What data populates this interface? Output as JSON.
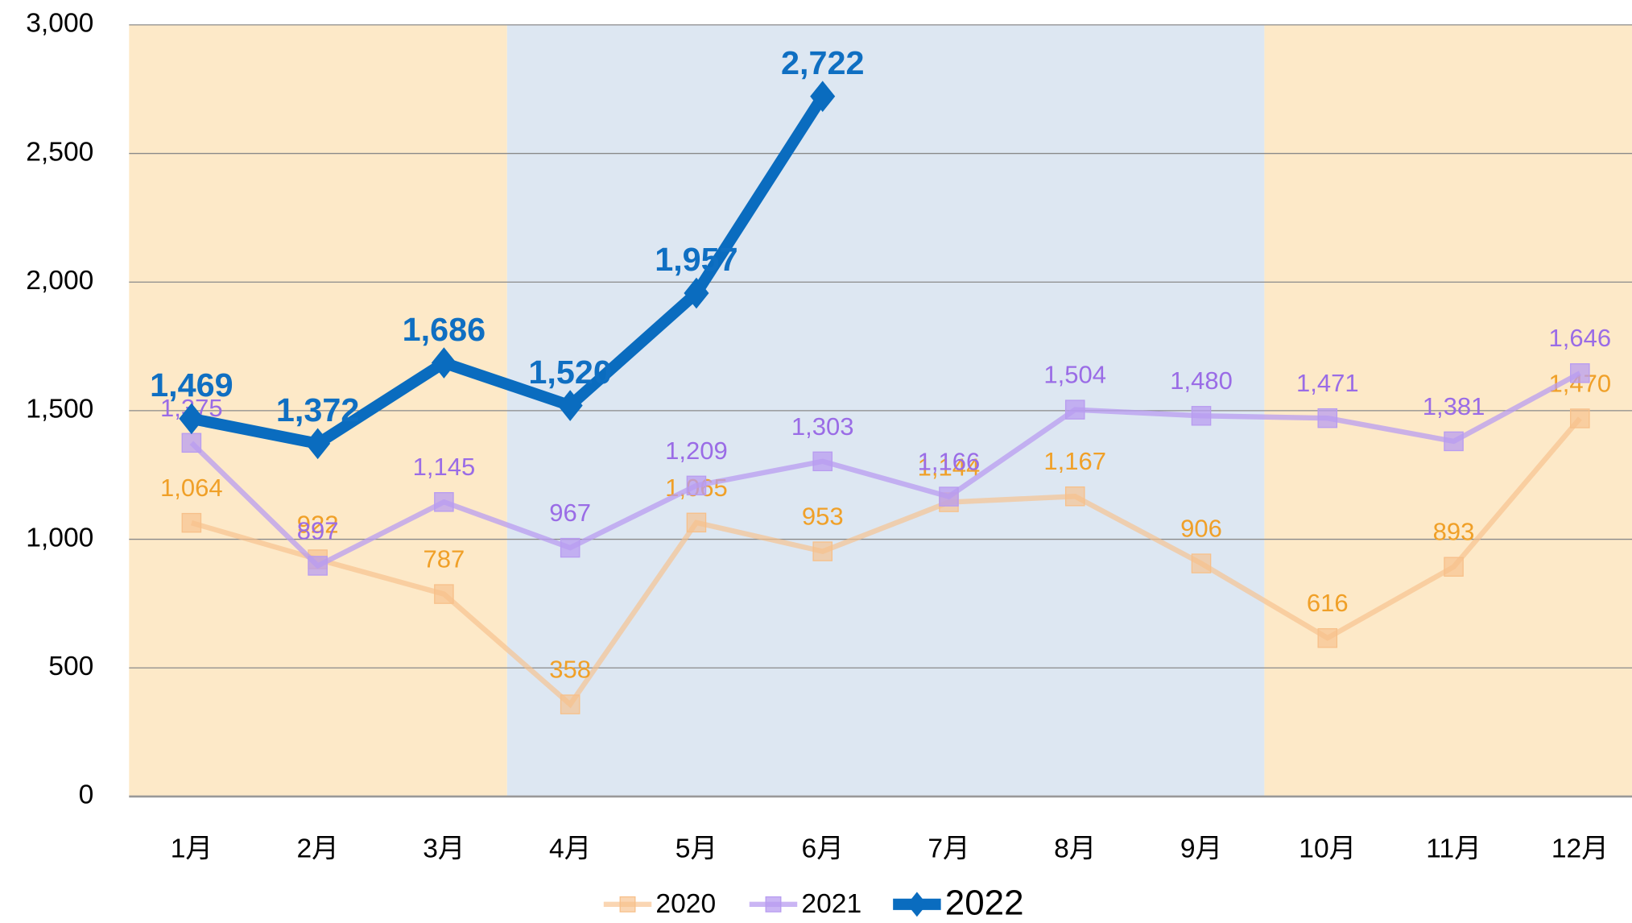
{
  "chart_data": {
    "type": "line",
    "categories": [
      "1月",
      "2月",
      "3月",
      "4月",
      "5月",
      "6月",
      "7月",
      "8月",
      "9月",
      "10月",
      "11月",
      "12月"
    ],
    "series": [
      {
        "name": "2020",
        "color": "#f7c08a",
        "label_color": "#f0a028",
        "values": [
          1064,
          922,
          787,
          358,
          1065,
          953,
          1144,
          1167,
          906,
          616,
          893,
          1470
        ],
        "value_labels": [
          "1,064",
          "922",
          "787",
          "358",
          "1,065",
          "953",
          "1,144",
          "1,167",
          "906",
          "616",
          "893",
          "1,470"
        ]
      },
      {
        "name": "2021",
        "color": "#b89cf0",
        "label_color": "#9a6ce6",
        "values": [
          1375,
          897,
          1145,
          967,
          1209,
          1303,
          1166,
          1504,
          1480,
          1471,
          1381,
          1646
        ],
        "value_labels": [
          "1,375",
          "897",
          "1,145",
          "967",
          "1,209",
          "1,303",
          "1,166",
          "1,504",
          "1,480",
          "1,471",
          "1,381",
          "1,646"
        ]
      },
      {
        "name": "2022",
        "color": "#0a6cbf",
        "label_color": "#0f6fc2",
        "values": [
          1469,
          1372,
          1686,
          1520,
          1957,
          2722,
          null,
          null,
          null,
          null,
          null,
          null
        ],
        "value_labels": [
          "1,469",
          "1,372",
          "1,686",
          "1,520",
          "1,957",
          "2,722",
          null,
          null,
          null,
          null,
          null,
          null
        ]
      }
    ],
    "ylim": [
      0,
      3000
    ],
    "yticks": [
      0,
      500,
      {
        "value": 1000,
        "label": "1,000"
      },
      {
        "value": 1500,
        "label": "1,500"
      },
      {
        "value": 2000,
        "label": "2,000"
      },
      {
        "value": 2500,
        "label": "2,500"
      },
      {
        "value": 3000,
        "label": "3,000"
      }
    ],
    "grid": true,
    "legend": "bottom"
  }
}
